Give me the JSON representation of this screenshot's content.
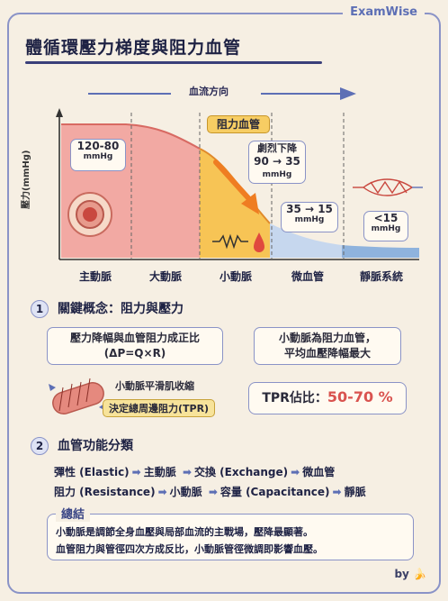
{
  "brand": "ExamWise",
  "title": "體循環壓力梯度與阻力血管",
  "flow_label": "血流方向",
  "y_axis_label": "壓力(mmHg)",
  "categories": [
    "主動脈",
    "大動脈",
    "小動脈",
    "微血管",
    "靜脈系統"
  ],
  "resistance_tag": "阻力血管",
  "pressure_boxes": {
    "aorta": {
      "value": "120-80",
      "unit": "mmHg"
    },
    "arteriole": {
      "title": "劇烈下降",
      "value": "90 → 35",
      "unit": "mmHg"
    },
    "capillary": {
      "value": "35 → 15",
      "unit": "mmHg"
    },
    "vein": {
      "value": "<15",
      "unit": "mmHg"
    }
  },
  "section1": {
    "number": "1",
    "title": "關鍵概念：阻力與壓力",
    "box1": {
      "line1": "壓力降幅與血管阻力成正比",
      "line2": "(ΔP=Q×R)"
    },
    "box2": {
      "line1": "小動脈為阻力血管，",
      "line2": "平均血壓降幅最大"
    },
    "smooth_muscle": "小動脈平滑肌收縮",
    "tpr_decides": "決定總周邊阻力(TPR)",
    "tpr_label": "TPR佔比：",
    "tpr_value": "50-70 %"
  },
  "section2": {
    "number": "2",
    "title": "血管功能分類",
    "rows": [
      {
        "a": "彈性 (Elastic)",
        "b": "主動脈",
        "c": "交換 (Exchange)",
        "d": "微血管"
      },
      {
        "a": "阻力 (Resistance)",
        "b": "小動脈",
        "c": "容量 (Capacitance)",
        "d": "靜脈"
      }
    ]
  },
  "summary": {
    "title": "總結",
    "line1": "小動脈是調節全身血壓與局部血流的主戰場，壓降最顯著。",
    "line2": "血管阻力與管徑四次方成反比，小動脈管徑微調即影響血壓。"
  },
  "byline": "by 🍌",
  "colors": {
    "frame": "#8a93c7",
    "accent": "#5d6fb5",
    "aorta_fill": "#f2a9a3",
    "arteriole_fill": "#f7c455",
    "capillary_fill": "#c6d7ee",
    "tpr_red": "#d9534f"
  },
  "arrow_icon": "orange-arrow-icon"
}
